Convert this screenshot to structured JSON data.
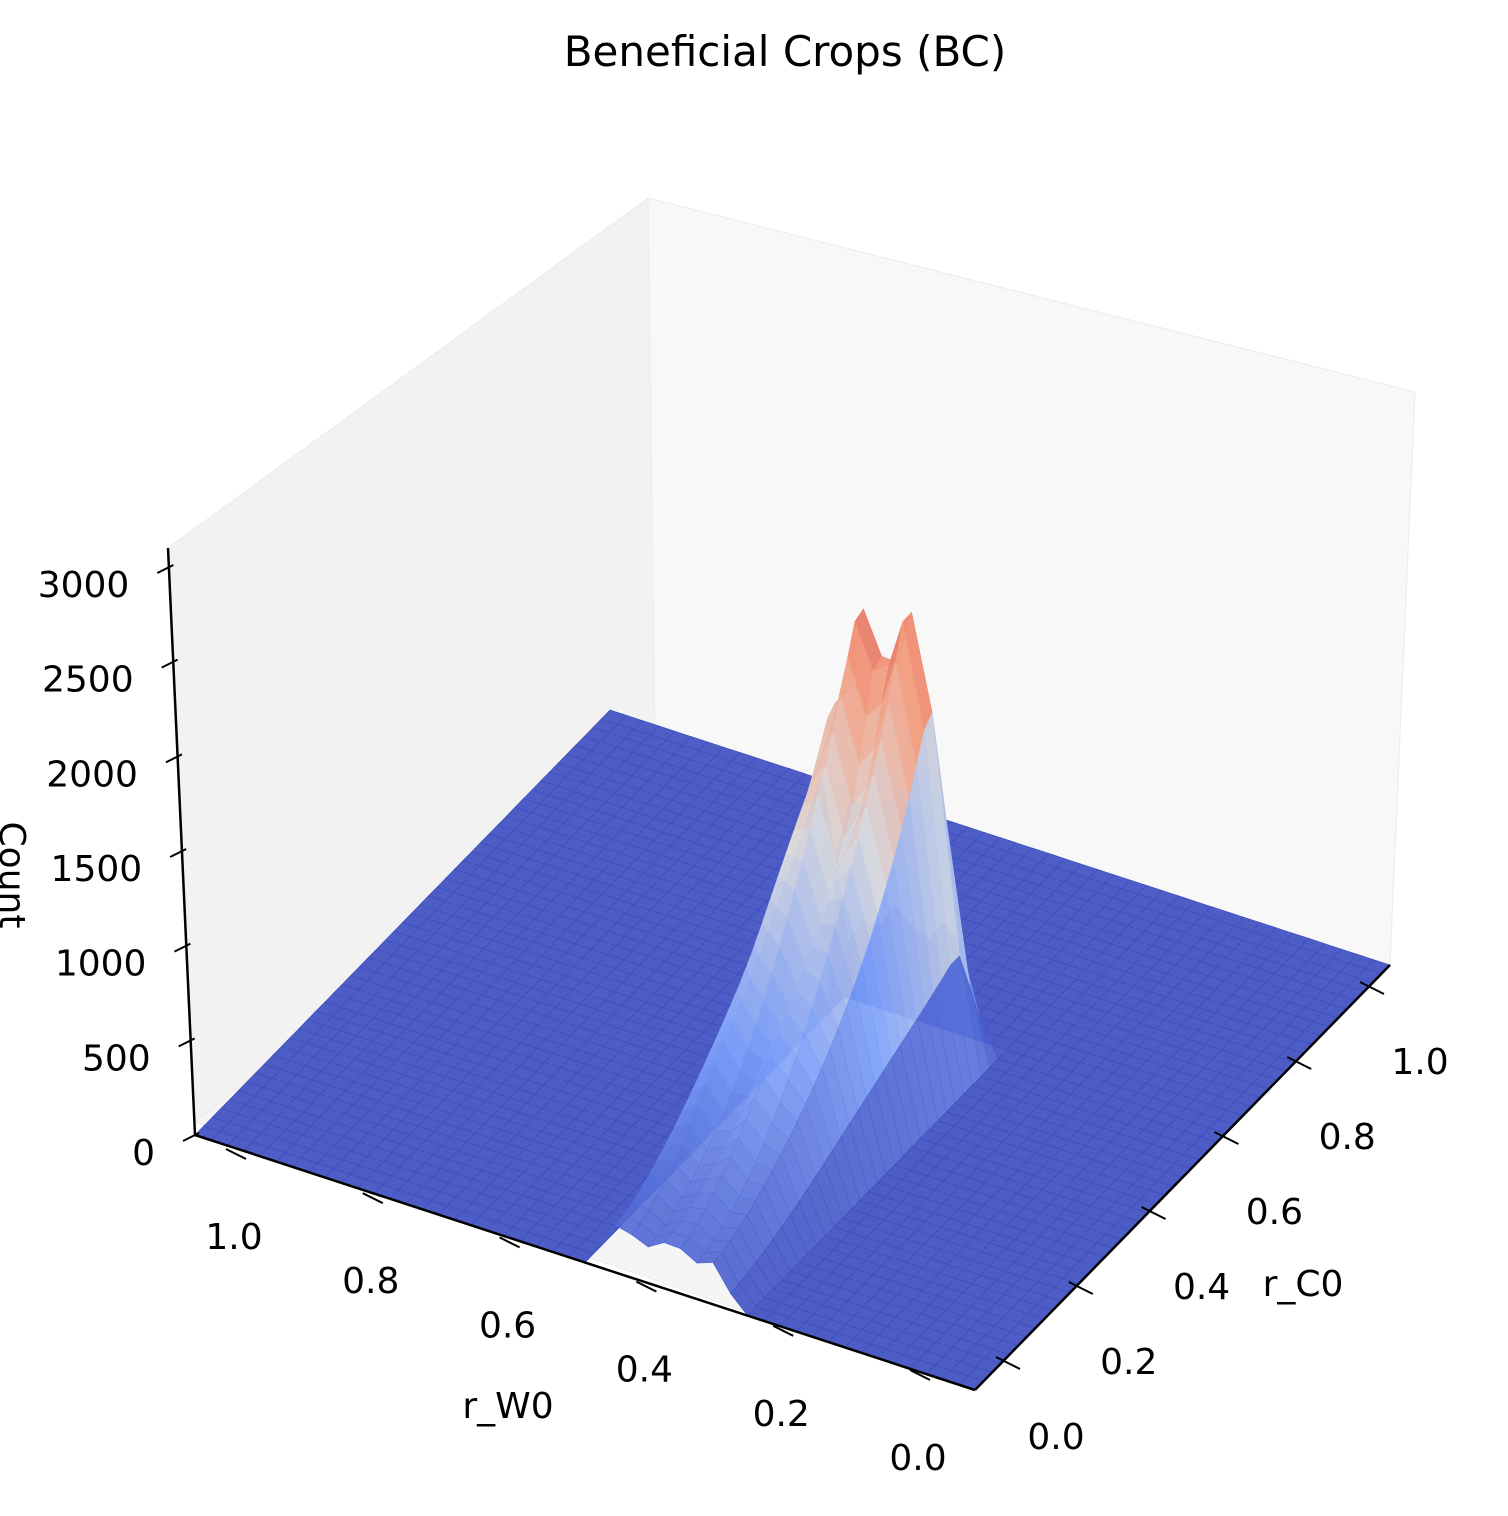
{
  "chart_data": {
    "type": "surface3d",
    "title": "Beneficial Crops (BC)",
    "xlabel": "r_W0",
    "ylabel": "r_C0",
    "zlabel": "Count",
    "xlim": [
      0.0,
      1.0
    ],
    "ylim": [
      0.0,
      1.0
    ],
    "zlim": [
      0,
      3000
    ],
    "x_ticks": [
      "0.0",
      "0.2",
      "0.4",
      "0.6",
      "0.8",
      "1.0"
    ],
    "y_ticks": [
      "0.0",
      "0.2",
      "0.4",
      "0.6",
      "0.8",
      "1.0"
    ],
    "z_ticks": [
      "0",
      "500",
      "1000",
      "1500",
      "2000",
      "2500",
      "3000"
    ],
    "colormap": "coolwarm",
    "grid": false,
    "base_value": 0,
    "peak_region": {
      "r_W0_range": [
        0.32,
        0.48
      ],
      "r_C0_range": [
        0.0,
        0.58
      ],
      "peak_count": 2650,
      "peak_location": {
        "r_W0": 0.38,
        "r_C0": 0.55
      }
    }
  }
}
